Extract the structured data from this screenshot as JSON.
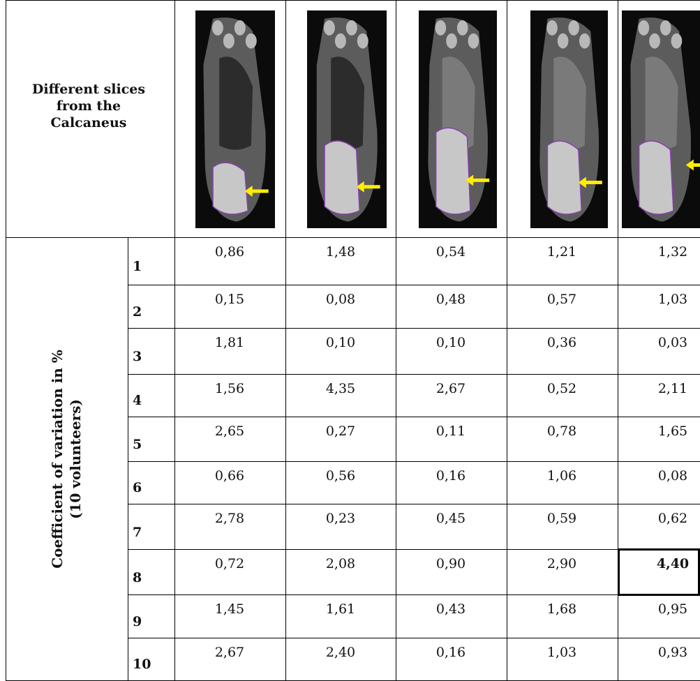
{
  "header": {
    "lines": [
      "Different slices",
      "from the",
      "Calcaneus"
    ]
  },
  "side_label": {
    "line1": "Coefficient of variation in %",
    "line2": "(10 volunteers)"
  },
  "thumbnails": [
    {
      "name": "slice-1-mri-thumbnail"
    },
    {
      "name": "slice-2-mri-thumbnail"
    },
    {
      "name": "slice-3-mri-thumbnail"
    },
    {
      "name": "slice-4-mri-thumbnail"
    },
    {
      "name": "slice-5-mri-thumbnail"
    }
  ],
  "colors": {
    "arrow": "#ffee00",
    "roi_outline": "#8a3fb0"
  },
  "rows": [
    {
      "label": "1",
      "values": [
        "0,86",
        "1,48",
        "0,54",
        "1,21",
        "1,32"
      ]
    },
    {
      "label": "2",
      "values": [
        "0,15",
        "0,08",
        "0,48",
        "0,57",
        "1,03"
      ]
    },
    {
      "label": "3",
      "values": [
        "1,81",
        "0,10",
        "0,10",
        "0,36",
        "0,03"
      ]
    },
    {
      "label": "4",
      "values": [
        "1,56",
        "4,35",
        "2,67",
        "0,52",
        "2,11"
      ]
    },
    {
      "label": "5",
      "values": [
        "2,65",
        "0,27",
        "0,11",
        "0,78",
        "1,65"
      ]
    },
    {
      "label": "6",
      "values": [
        "0,66",
        "0,56",
        "0,16",
        "1,06",
        "0,08"
      ]
    },
    {
      "label": "7",
      "values": [
        "2,78",
        "0,23",
        "0,45",
        "0,59",
        "0,62"
      ]
    },
    {
      "label": "8",
      "values": [
        "0,72",
        "2,08",
        "0,90",
        "2,90",
        "4,40"
      ]
    },
    {
      "label": "9",
      "values": [
        "1,45",
        "1,61",
        "0,43",
        "1,68",
        "0,95"
      ]
    },
    {
      "label": "10",
      "values": [
        "2,67",
        "2,40",
        "0,16",
        "1,03",
        "0,93"
      ]
    }
  ],
  "highlight": {
    "row": 8,
    "column": 5,
    "value": "4,40"
  }
}
